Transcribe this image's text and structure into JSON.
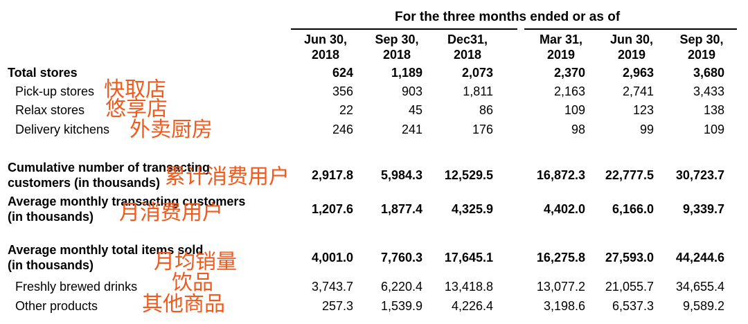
{
  "header": {
    "title": "For the three months ended or as of",
    "columns": [
      [
        "Jun 30,",
        "2018"
      ],
      [
        "Sep 30,",
        "2018"
      ],
      [
        "Dec31,",
        "2018"
      ],
      [
        "Mar 31,",
        "2019"
      ],
      [
        "Jun 30,",
        "2019"
      ],
      [
        "Sep 30,",
        "2019"
      ]
    ]
  },
  "rows": [
    {
      "label": [
        "Total stores"
      ],
      "bold": true,
      "indent": false,
      "values": [
        "624",
        "1,189",
        "2,073",
        "2,370",
        "2,963",
        "3,680"
      ],
      "note": ""
    },
    {
      "label": [
        "Pick-up stores"
      ],
      "bold": false,
      "indent": true,
      "values": [
        "356",
        "903",
        "1,811",
        "2,163",
        "2,741",
        "3,433"
      ],
      "note": "快取店"
    },
    {
      "label": [
        "Relax stores"
      ],
      "bold": false,
      "indent": true,
      "values": [
        "22",
        "45",
        "86",
        "109",
        "123",
        "138"
      ],
      "note": "悠享店"
    },
    {
      "label": [
        "Delivery kitchens"
      ],
      "bold": false,
      "indent": true,
      "values": [
        "246",
        "241",
        "176",
        "98",
        "99",
        "109"
      ],
      "note": "外卖厨房"
    },
    {
      "label": [
        "Cumulative number of transacting",
        "customers (in thousands)"
      ],
      "bold": true,
      "indent": false,
      "values": [
        "2,917.8",
        "5,984.3",
        "12,529.5",
        "16,872.3",
        "22,777.5",
        "30,723.7"
      ],
      "note": "累计消费用户"
    },
    {
      "label": [
        "Average monthly transacting customers",
        "(in thousands)"
      ],
      "bold": true,
      "indent": false,
      "values": [
        "1,207.6",
        "1,877.4",
        "4,325.9",
        "4,402.0",
        "6,166.0",
        "9,339.7"
      ],
      "note": "月消费用户"
    },
    {
      "label": [
        "Average monthly total items sold",
        "(in thousands)"
      ],
      "bold": true,
      "indent": false,
      "values": [
        "4,001.0",
        "7,760.3",
        "17,645.1",
        "16,275.8",
        "27,593.0",
        "44,244.6"
      ],
      "note": "月均销量"
    },
    {
      "label": [
        "Freshly brewed drinks"
      ],
      "bold": false,
      "indent": true,
      "values": [
        "3,743.7",
        "6,220.4",
        "13,418.8",
        "13,077.2",
        "21,055.7",
        "34,655.4"
      ],
      "note": "饮品"
    },
    {
      "label": [
        "Other products"
      ],
      "bold": false,
      "indent": true,
      "values": [
        "257.3",
        "1,539.9",
        "4,226.4",
        "3,198.6",
        "6,537.3",
        "9,589.2"
      ],
      "note": "其他商品"
    }
  ],
  "colors": {
    "annotation": "#ef5a1e",
    "text": "#000000"
  }
}
